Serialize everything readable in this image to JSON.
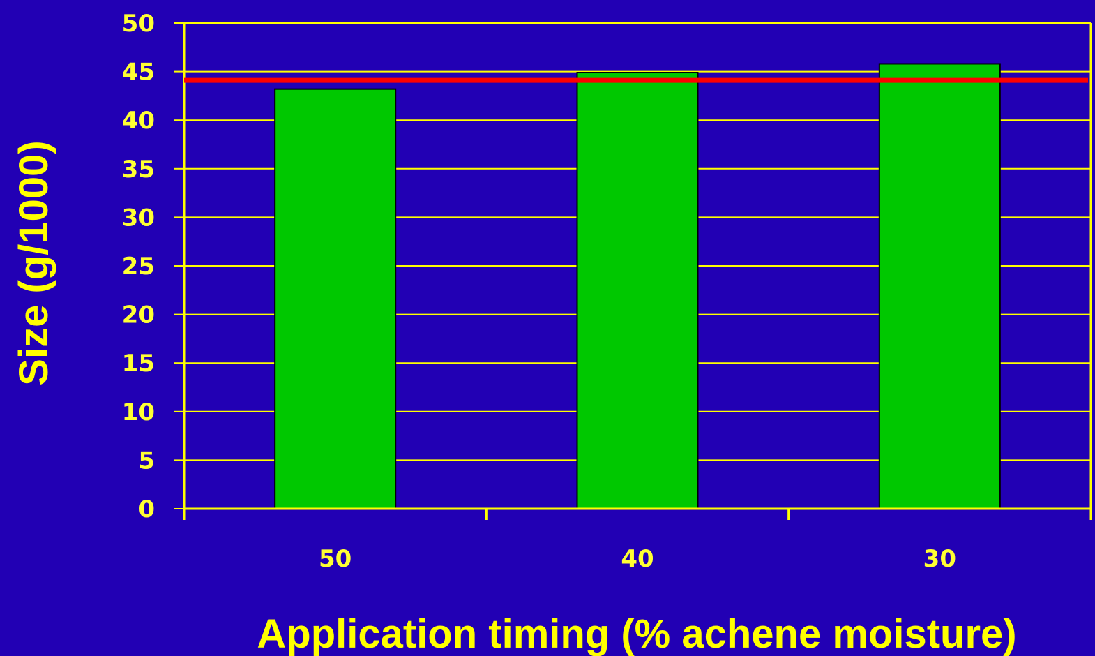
{
  "chart_data": {
    "type": "bar",
    "title": "",
    "xlabel": "Application timing (% achene moisture)",
    "ylabel": "Size (g/1000)",
    "categories": [
      "50",
      "40",
      "30"
    ],
    "values": [
      43.2,
      44.9,
      45.8
    ],
    "ylim": [
      0,
      50
    ],
    "y_ticks": [
      "0",
      "5",
      "10",
      "15",
      "20",
      "25",
      "30",
      "35",
      "40",
      "45",
      "50"
    ],
    "reference_line": {
      "value": 44.1,
      "color": "#ff0000"
    },
    "grid": true,
    "colors": {
      "background": "#2200b4",
      "bar": "#00c800",
      "bar_edge": "#000000",
      "grid": "#ffff00",
      "text": "#ffff00",
      "reference": "#ff0000"
    }
  }
}
